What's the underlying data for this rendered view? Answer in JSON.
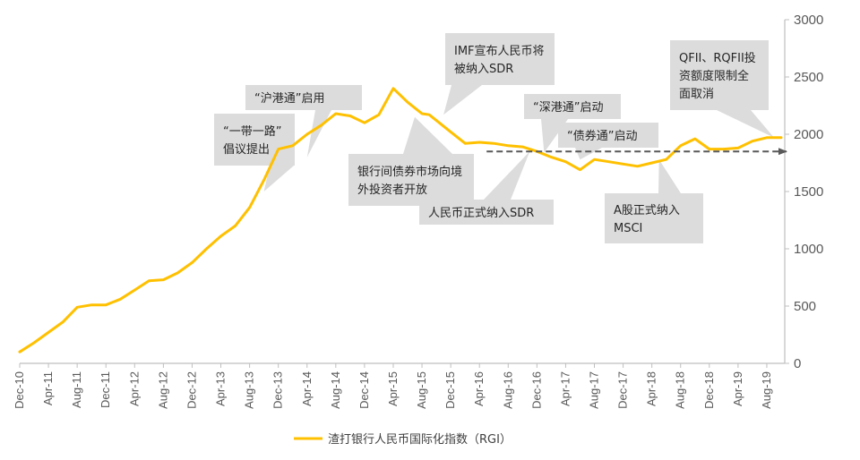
{
  "chart_data": {
    "type": "line",
    "title": "",
    "xlabel": "",
    "ylabel": "",
    "y_axis_side": "right",
    "ylim": [
      0,
      3000
    ],
    "yticks": [
      0,
      500,
      1000,
      1500,
      2000,
      2500,
      3000
    ],
    "x_tick_labels": [
      "Dec-10",
      "Apr-11",
      "Aug-11",
      "Dec-11",
      "Apr-12",
      "Aug-12",
      "Dec-12",
      "Apr-13",
      "Aug-13",
      "Dec-13",
      "Apr-14",
      "Aug-14",
      "Dec-14",
      "Apr-15",
      "Aug-15",
      "Dec-15",
      "Apr-16",
      "Aug-16",
      "Dec-16",
      "Apr-17",
      "Aug-17",
      "Dec-17",
      "Apr-18",
      "Aug-18",
      "Dec-18",
      "Apr-19",
      "Aug-19"
    ],
    "grid": false,
    "legend_position": "bottom-center",
    "series": [
      {
        "name": "渣打银行人民币国际化指数（RGI）",
        "color": "#FFC000",
        "x": [
          "Dec-10",
          "Feb-11",
          "Apr-11",
          "Jun-11",
          "Aug-11",
          "Oct-11",
          "Dec-11",
          "Feb-12",
          "Apr-12",
          "Jun-12",
          "Aug-12",
          "Oct-12",
          "Dec-12",
          "Feb-13",
          "Apr-13",
          "Jun-13",
          "Aug-13",
          "Oct-13",
          "Dec-13",
          "Feb-14",
          "Apr-14",
          "Jun-14",
          "Aug-14",
          "Oct-14",
          "Dec-14",
          "Feb-15",
          "Apr-15",
          "Jun-15",
          "Aug-15",
          "Sep-15",
          "Oct-15",
          "Dec-15",
          "Feb-16",
          "Apr-16",
          "Jun-16",
          "Aug-16",
          "Oct-16",
          "Dec-16",
          "Feb-17",
          "Apr-17",
          "Jun-17",
          "Aug-17",
          "Oct-17",
          "Dec-17",
          "Feb-18",
          "Apr-18",
          "Jun-18",
          "Aug-18",
          "Oct-18",
          "Dec-18",
          "Feb-19",
          "Apr-19",
          "Jun-19",
          "Aug-19",
          "Oct-19"
        ],
        "values": [
          100,
          180,
          270,
          360,
          490,
          510,
          510,
          560,
          640,
          720,
          730,
          790,
          880,
          1000,
          1110,
          1200,
          1360,
          1600,
          1870,
          1900,
          2000,
          2080,
          2180,
          2160,
          2100,
          2170,
          2400,
          2280,
          2180,
          2170,
          2120,
          2020,
          1920,
          1930,
          1920,
          1900,
          1890,
          1850,
          1800,
          1760,
          1690,
          1780,
          1760,
          1740,
          1720,
          1750,
          1780,
          1900,
          1960,
          1870,
          1870,
          1880,
          1940,
          1970,
          1970
        ]
      }
    ],
    "trend_arrow": {
      "start": [
        "Apr-16",
        1850
      ],
      "end": [
        "Oct-19",
        1850
      ],
      "color": "#7F7F7F",
      "style": "dashed"
    },
    "annotations": [
      {
        "lines": [
          "“一带一路”",
          "倡议提出"
        ],
        "target": [
          "Oct-13",
          1500
        ]
      },
      {
        "lines": [
          "“沪港通”启用"
        ],
        "target": [
          "Apr-14",
          1800
        ]
      },
      {
        "lines": [
          "银行间债券市场向境",
          "外投资者开放"
        ],
        "target": [
          "Jul-15",
          2150
        ]
      },
      {
        "lines": [
          "IMF宣布人民币将",
          "被纳入SDR"
        ],
        "target": [
          "Nov-15",
          2170
        ]
      },
      {
        "lines": [
          "人民币正式纳入SDR"
        ],
        "target": [
          "Nov-16",
          1850
        ]
      },
      {
        "lines": [
          "“深港通”启动"
        ],
        "target": [
          "Jan-17",
          1840
        ]
      },
      {
        "lines": [
          "“债券通”启动"
        ],
        "target": [
          "Jun-17",
          1780
        ]
      },
      {
        "lines": [
          "A股正式纳入",
          "MSCI"
        ],
        "target": [
          "May-18",
          1780
        ]
      },
      {
        "lines": [
          "QFII、RQFII投",
          "资额度限制全",
          "面取消"
        ],
        "target": [
          "Sep-19",
          1970
        ]
      }
    ]
  }
}
